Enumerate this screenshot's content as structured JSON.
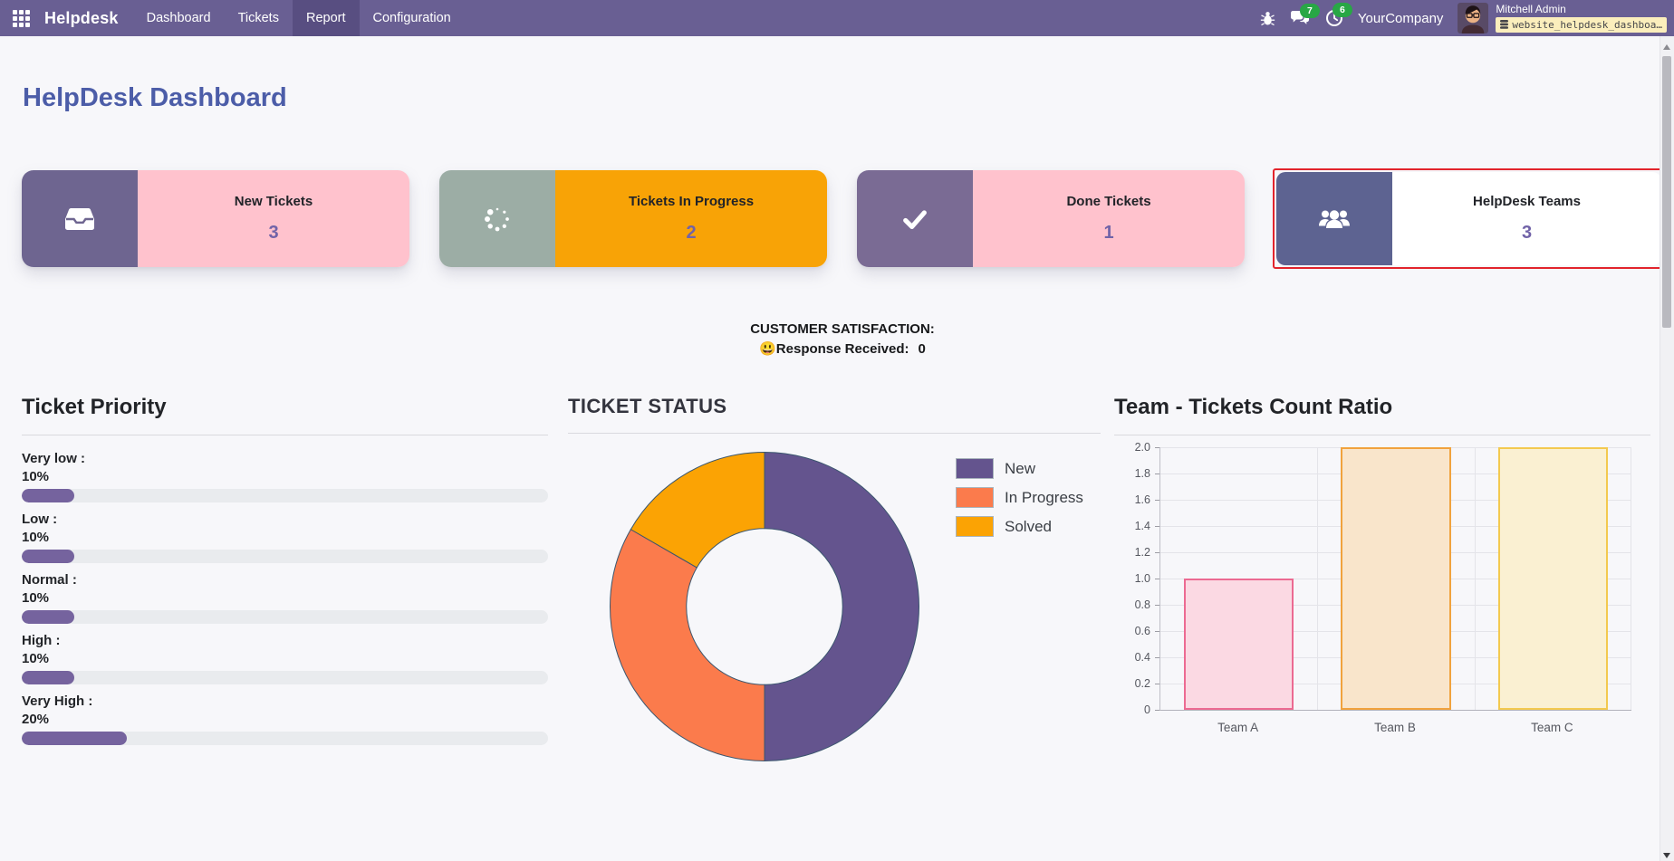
{
  "navbar": {
    "brand": "Helpdesk",
    "menu_items": [
      {
        "label": "Dashboard",
        "active": false
      },
      {
        "label": "Tickets",
        "active": false
      },
      {
        "label": "Report",
        "active": true
      },
      {
        "label": "Configuration",
        "active": false
      }
    ],
    "messages_badge": "7",
    "activities_badge": "6",
    "company": "YourCompany",
    "user_name": "Mitchell Admin",
    "database": "website_helpdesk_dashboa…",
    "badge_color": "#28a745",
    "navbar_color": "#695f93"
  },
  "page": {
    "title": "HelpDesk Dashboard",
    "title_color": "#4c5da8"
  },
  "kpi_cards": [
    {
      "label": "New Tickets",
      "value": "3",
      "icon": "inbox-icon",
      "icon_bg": "#6e6590",
      "body_bg": "#ffc2cd"
    },
    {
      "label": "Tickets In Progress",
      "value": "2",
      "icon": "spinner-icon",
      "icon_bg": "#9cada5",
      "body_bg": "#f8a306"
    },
    {
      "label": "Done Tickets",
      "value": "1",
      "icon": "check-icon",
      "icon_bg": "#7a6b94",
      "body_bg": "#ffc2cd"
    },
    {
      "label": "HelpDesk Teams",
      "value": "3",
      "icon": "users-icon",
      "icon_bg": "#5d6391",
      "body_bg": "#ffffff",
      "highlighted": true,
      "highlight_border": "#e2242c"
    }
  ],
  "satisfaction": {
    "heading": "CUSTOMER SATISFACTION:",
    "emoji": "😃",
    "label": "Response Received:",
    "value": "0"
  },
  "priority_section": {
    "title": "Ticket Priority",
    "fill_color": "#75639e",
    "track_color": "#e9ebee",
    "items": [
      {
        "label": "Very low :",
        "value": "10%",
        "pct": 10
      },
      {
        "label": "Low :",
        "value": "10%",
        "pct": 10
      },
      {
        "label": "Normal :",
        "value": "10%",
        "pct": 10
      },
      {
        "label": "High :",
        "value": "10%",
        "pct": 10
      },
      {
        "label": "Very High :",
        "value": "20%",
        "pct": 20
      }
    ]
  },
  "chart_data": [
    {
      "type": "pie",
      "donut": true,
      "title": "TICKET STATUS",
      "labels": [
        "New",
        "In Progress",
        "Solved"
      ],
      "values": [
        3,
        2,
        1
      ],
      "percentages": [
        50,
        33.3,
        16.7
      ],
      "colors": [
        "#64548e",
        "#fb7b4c",
        "#fba304"
      ],
      "slice_border_color": "#3a566e",
      "legend_position": "right",
      "start_angle": "top-clockwise",
      "inner_radius_ratio": 0.5
    },
    {
      "type": "bar",
      "title": "Team - Tickets Count Ratio",
      "categories": [
        "Team A",
        "Team B",
        "Team C"
      ],
      "values": [
        1,
        2,
        2
      ],
      "bar_fill_colors": [
        "#fbd9e3",
        "#f9e5cb",
        "#faf0d2"
      ],
      "bar_border_colors": [
        "#ec6a92",
        "#f1a23d",
        "#f3c94f"
      ],
      "xlabel": "",
      "ylabel": "",
      "ylim": [
        0,
        2
      ],
      "ytick_labels": [
        "0",
        "0.2",
        "0.4",
        "0.6",
        "0.8",
        "1.0",
        "1.2",
        "1.4",
        "1.6",
        "1.8",
        "2.0"
      ],
      "grid": true,
      "legend": false
    }
  ]
}
